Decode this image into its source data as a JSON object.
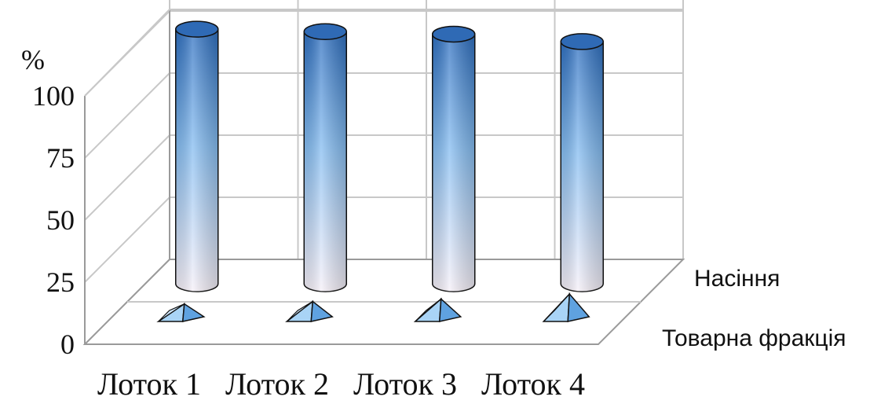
{
  "chart_data": {
    "type": "bar",
    "categories": [
      "Лоток 1",
      "Лоток 2",
      "Лоток 3",
      "Лоток 4"
    ],
    "series": [
      {
        "name": "Насіння",
        "values": [
          93,
          92,
          91,
          88
        ]
      },
      {
        "name": "Товарна фракція",
        "values": [
          2,
          3,
          4,
          6
        ]
      }
    ],
    "yticks": [
      "0",
      "25",
      "50",
      "75",
      "100"
    ],
    "ylabel": "%",
    "ylim": [
      0,
      100
    ],
    "grid": true,
    "colors": {
      "cylinder_top": "#2e6fc0",
      "cylinder_mid": "#7fb8f0",
      "cylinder_bottom": "#f3eef8",
      "pyramid": "#8fc6f2",
      "pyramid_dark": "#4f93d6"
    }
  }
}
